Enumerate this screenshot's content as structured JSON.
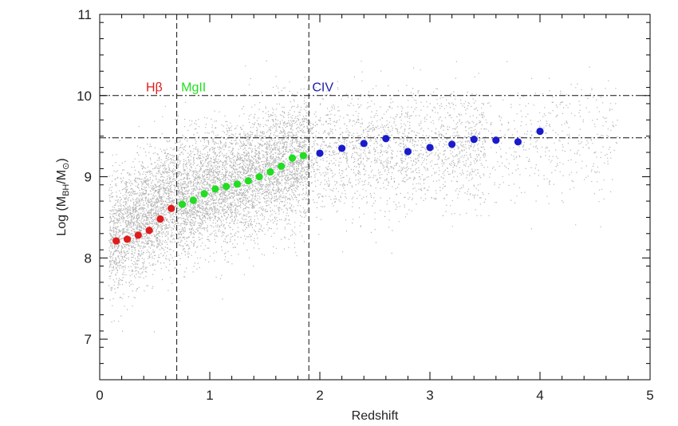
{
  "chart_data": {
    "type": "scatter",
    "title": "",
    "xlabel": "Redshift",
    "ylabel_parts": {
      "prefix": "Log (M",
      "sub1": "BH",
      "mid": "/M",
      "sub2": "⊙",
      "suffix": ")"
    },
    "xlim": [
      0,
      5
    ],
    "ylim": [
      6.5,
      11
    ],
    "xticks": [
      "0",
      "1",
      "2",
      "3",
      "4",
      "5"
    ],
    "yticks": [
      "7",
      "8",
      "9",
      "10",
      "11"
    ],
    "grid": false,
    "background_cloud_color": "#b4b4b4",
    "vertical_lines": [
      0.7,
      1.9
    ],
    "horizontal_lines": [
      10.0,
      9.48
    ],
    "annotations": [
      {
        "text": "Hβ",
        "x": 0.42,
        "y": 10.1,
        "color": "#e01b1b"
      },
      {
        "text": "MgII",
        "x": 0.74,
        "y": 10.1,
        "color": "#22dd22"
      },
      {
        "text": "CIV",
        "x": 1.93,
        "y": 10.1,
        "color": "#1a1aa8"
      }
    ],
    "series": [
      {
        "line": "Hβ",
        "color": "#e01b1b",
        "x": [
          0.15,
          0.25,
          0.35,
          0.45,
          0.55,
          0.65
        ],
        "y": [
          8.21,
          8.23,
          8.28,
          8.34,
          8.48,
          8.61
        ]
      },
      {
        "line": "MgII",
        "color": "#22dd22",
        "x": [
          0.75,
          0.85,
          0.95,
          1.05,
          1.15,
          1.25,
          1.35,
          1.45,
          1.55,
          1.65,
          1.75,
          1.85
        ],
        "y": [
          8.66,
          8.71,
          8.79,
          8.85,
          8.88,
          8.91,
          8.95,
          9.0,
          9.06,
          9.13,
          9.23,
          9.26
        ]
      },
      {
        "line": "CIV",
        "color": "#1a1acc",
        "x": [
          2.0,
          2.2,
          2.4,
          2.6,
          2.8,
          3.0,
          3.2,
          3.4,
          3.6,
          3.8,
          4.0
        ],
        "y": [
          9.29,
          9.35,
          9.41,
          9.47,
          9.31,
          9.36,
          9.4,
          9.46,
          9.45,
          9.43,
          9.56
        ]
      }
    ]
  }
}
